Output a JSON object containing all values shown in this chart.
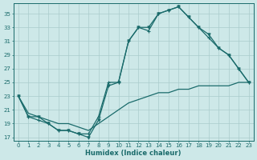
{
  "background_color": "#cde8e8",
  "grid_color": "#aacccc",
  "line_color": "#1a6b6b",
  "xlabel": "Humidex (Indice chaleur)",
  "xlim": [
    -0.5,
    23.5
  ],
  "ylim": [
    16.5,
    36.5
  ],
  "xticks": [
    0,
    1,
    2,
    3,
    4,
    5,
    6,
    7,
    8,
    9,
    10,
    11,
    12,
    13,
    14,
    15,
    16,
    17,
    18,
    19,
    20,
    21,
    22,
    23
  ],
  "yticks": [
    17,
    19,
    21,
    23,
    25,
    27,
    29,
    31,
    33,
    35
  ],
  "curve1_x": [
    0,
    1,
    2,
    3,
    4,
    5,
    6,
    7,
    8,
    9,
    10,
    11,
    12,
    13,
    14,
    15,
    16,
    17,
    18,
    19,
    20,
    21,
    22,
    23
  ],
  "curve1_y": [
    23,
    20,
    19.5,
    19,
    18,
    18,
    17.5,
    17.5,
    20,
    25,
    25,
    31,
    33,
    32.5,
    35,
    35.5,
    36,
    34.5,
    33,
    31.5,
    30,
    29,
    27,
    25
  ],
  "curve2_x": [
    0,
    1,
    2,
    3,
    4,
    5,
    6,
    7,
    8,
    9,
    10,
    11,
    12,
    13,
    14,
    15,
    16,
    17,
    18,
    19,
    20,
    21,
    22,
    23
  ],
  "curve2_y": [
    23,
    20,
    20,
    19,
    18,
    18,
    17.5,
    17,
    19.5,
    24.5,
    25,
    31,
    33,
    33,
    35,
    35.5,
    36,
    34.5,
    33,
    32,
    30,
    29,
    27,
    25
  ],
  "curve3_x": [
    0,
    1,
    2,
    3,
    4,
    5,
    6,
    7,
    8,
    9,
    10,
    11,
    12,
    13,
    14,
    15,
    16,
    17,
    18,
    19,
    20,
    21,
    22,
    23
  ],
  "curve3_y": [
    23,
    20.5,
    20,
    19.5,
    19,
    19,
    18.5,
    18,
    19,
    20,
    21,
    22,
    22.5,
    23,
    23.5,
    23.5,
    24,
    24,
    24.5,
    24.5,
    24.5,
    24.5,
    25,
    25
  ]
}
